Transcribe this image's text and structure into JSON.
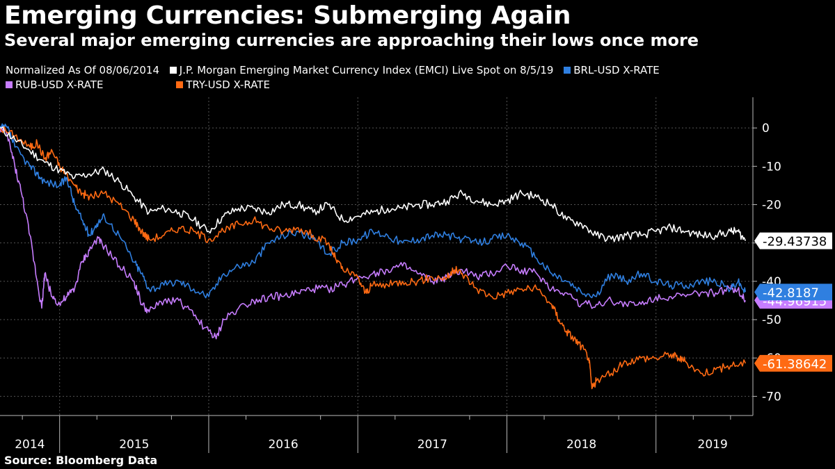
{
  "title": "Emerging Currencies: Submerging Again",
  "subtitle": "Several major emerging currencies are approaching their lows once more",
  "source": "Source: Bloomberg Data",
  "legend": {
    "normalized_note": "Normalized As Of 08/06/2014",
    "items": [
      {
        "label": "J.P. Morgan Emerging Market Currency Index (EMCI) Live Spot  on 8/5/19",
        "color": "#ffffff"
      },
      {
        "label": "BRL-USD X-RATE",
        "color": "#2f7fe0"
      },
      {
        "label": "RUB-USD X-RATE",
        "color": "#c77dff"
      },
      {
        "label": "TRY-USD X-RATE",
        "color": "#ff6a13"
      }
    ]
  },
  "chart_data": {
    "type": "line",
    "title": "Emerging Currencies: Submerging Again",
    "xlabel": "",
    "ylabel": "",
    "xlim": [
      2014.6,
      2019.65
    ],
    "ylim": [
      -75,
      8
    ],
    "yticks": [
      0,
      -10,
      -20,
      -30,
      -40,
      -50,
      -60,
      -70
    ],
    "year_labels": [
      {
        "label": "2014",
        "x": 2014.8
      },
      {
        "label": "2015",
        "x": 2015.5
      },
      {
        "label": "2016",
        "x": 2016.5
      },
      {
        "label": "2017",
        "x": 2017.5
      },
      {
        "label": "2018",
        "x": 2018.5
      },
      {
        "label": "2019",
        "x": 2019.38
      }
    ],
    "year_boundaries": [
      2015.0,
      2016.0,
      2017.0,
      2018.0,
      2019.0
    ],
    "minor_boundaries": [
      2014.75,
      2015.25,
      2015.75,
      2016.25,
      2016.75,
      2017.25,
      2017.75,
      2018.25,
      2018.75,
      2019.25,
      2019.5
    ],
    "series": [
      {
        "name": "J.P. Morgan Emerging Market Currency Index (EMCI) Live Spot  on 8/5/19",
        "color": "#ffffff",
        "end_label": "-29.43738",
        "points": [
          [
            2014.6,
            0
          ],
          [
            2014.7,
            -3
          ],
          [
            2014.8,
            -6
          ],
          [
            2014.9,
            -9
          ],
          [
            2015.0,
            -11
          ],
          [
            2015.1,
            -13
          ],
          [
            2015.2,
            -12
          ],
          [
            2015.3,
            -11
          ],
          [
            2015.4,
            -14
          ],
          [
            2015.5,
            -18
          ],
          [
            2015.6,
            -22
          ],
          [
            2015.7,
            -21
          ],
          [
            2015.8,
            -22
          ],
          [
            2015.9,
            -24
          ],
          [
            2016.0,
            -27
          ],
          [
            2016.1,
            -23
          ],
          [
            2016.2,
            -21
          ],
          [
            2016.3,
            -21
          ],
          [
            2016.4,
            -22
          ],
          [
            2016.5,
            -20
          ],
          [
            2016.6,
            -20
          ],
          [
            2016.7,
            -22
          ],
          [
            2016.8,
            -20
          ],
          [
            2016.9,
            -24
          ],
          [
            2017.0,
            -23
          ],
          [
            2017.1,
            -22
          ],
          [
            2017.2,
            -21
          ],
          [
            2017.3,
            -21
          ],
          [
            2017.4,
            -20
          ],
          [
            2017.5,
            -20
          ],
          [
            2017.6,
            -19
          ],
          [
            2017.7,
            -17
          ],
          [
            2017.8,
            -19
          ],
          [
            2017.9,
            -20
          ],
          [
            2018.0,
            -19
          ],
          [
            2018.1,
            -17
          ],
          [
            2018.2,
            -18
          ],
          [
            2018.3,
            -20
          ],
          [
            2018.4,
            -24
          ],
          [
            2018.5,
            -25
          ],
          [
            2018.6,
            -28
          ],
          [
            2018.7,
            -29
          ],
          [
            2018.8,
            -28
          ],
          [
            2018.9,
            -28
          ],
          [
            2019.0,
            -27
          ],
          [
            2019.1,
            -26
          ],
          [
            2019.2,
            -27
          ],
          [
            2019.3,
            -28
          ],
          [
            2019.4,
            -28
          ],
          [
            2019.5,
            -27
          ],
          [
            2019.55,
            -27
          ],
          [
            2019.6,
            -29.43738
          ]
        ]
      },
      {
        "name": "BRL-USD X-RATE",
        "color": "#2f7fe0",
        "end_label": "-42.8187",
        "points": [
          [
            2014.6,
            0
          ],
          [
            2014.65,
            0
          ],
          [
            2014.7,
            -5
          ],
          [
            2014.8,
            -10
          ],
          [
            2014.85,
            -12
          ],
          [
            2014.9,
            -14
          ],
          [
            2015.0,
            -15
          ],
          [
            2015.05,
            -13
          ],
          [
            2015.1,
            -20
          ],
          [
            2015.15,
            -24
          ],
          [
            2015.2,
            -28
          ],
          [
            2015.25,
            -25
          ],
          [
            2015.3,
            -23
          ],
          [
            2015.4,
            -28
          ],
          [
            2015.5,
            -35
          ],
          [
            2015.55,
            -38
          ],
          [
            2015.6,
            -42
          ],
          [
            2015.7,
            -41
          ],
          [
            2015.8,
            -40
          ],
          [
            2015.9,
            -42
          ],
          [
            2016.0,
            -44
          ],
          [
            2016.1,
            -38
          ],
          [
            2016.2,
            -36
          ],
          [
            2016.3,
            -35
          ],
          [
            2016.4,
            -30
          ],
          [
            2016.5,
            -28
          ],
          [
            2016.6,
            -27
          ],
          [
            2016.7,
            -29
          ],
          [
            2016.8,
            -33
          ],
          [
            2016.9,
            -30
          ],
          [
            2017.0,
            -29
          ],
          [
            2017.1,
            -27
          ],
          [
            2017.2,
            -28
          ],
          [
            2017.3,
            -30
          ],
          [
            2017.4,
            -29
          ],
          [
            2017.5,
            -28
          ],
          [
            2017.6,
            -28
          ],
          [
            2017.7,
            -29
          ],
          [
            2017.8,
            -30
          ],
          [
            2017.9,
            -29
          ],
          [
            2018.0,
            -28
          ],
          [
            2018.1,
            -30
          ],
          [
            2018.2,
            -34
          ],
          [
            2018.3,
            -38
          ],
          [
            2018.4,
            -40
          ],
          [
            2018.5,
            -43
          ],
          [
            2018.6,
            -44
          ],
          [
            2018.7,
            -38
          ],
          [
            2018.8,
            -40
          ],
          [
            2018.9,
            -38
          ],
          [
            2019.0,
            -40
          ],
          [
            2019.1,
            -41
          ],
          [
            2019.2,
            -41
          ],
          [
            2019.3,
            -40
          ],
          [
            2019.4,
            -40
          ],
          [
            2019.5,
            -42
          ],
          [
            2019.55,
            -40
          ],
          [
            2019.6,
            -42.8187
          ]
        ]
      },
      {
        "name": "RUB-USD X-RATE",
        "color": "#c77dff",
        "end_label": "-44.96915",
        "points": [
          [
            2014.6,
            0
          ],
          [
            2014.65,
            -2
          ],
          [
            2014.7,
            -10
          ],
          [
            2014.75,
            -18
          ],
          [
            2014.8,
            -28
          ],
          [
            2014.85,
            -40
          ],
          [
            2014.88,
            -47
          ],
          [
            2014.9,
            -38
          ],
          [
            2014.95,
            -44
          ],
          [
            2015.0,
            -46
          ],
          [
            2015.05,
            -44
          ],
          [
            2015.1,
            -42
          ],
          [
            2015.15,
            -35
          ],
          [
            2015.2,
            -32
          ],
          [
            2015.25,
            -29
          ],
          [
            2015.3,
            -31
          ],
          [
            2015.4,
            -36
          ],
          [
            2015.5,
            -40
          ],
          [
            2015.55,
            -46
          ],
          [
            2015.6,
            -48
          ],
          [
            2015.7,
            -45
          ],
          [
            2015.8,
            -45
          ],
          [
            2015.9,
            -49
          ],
          [
            2016.0,
            -53
          ],
          [
            2016.05,
            -55
          ],
          [
            2016.1,
            -50
          ],
          [
            2016.2,
            -47
          ],
          [
            2016.3,
            -45
          ],
          [
            2016.4,
            -44
          ],
          [
            2016.5,
            -44
          ],
          [
            2016.6,
            -43
          ],
          [
            2016.7,
            -42
          ],
          [
            2016.8,
            -42
          ],
          [
            2016.9,
            -41
          ],
          [
            2017.0,
            -39
          ],
          [
            2017.1,
            -38
          ],
          [
            2017.2,
            -37
          ],
          [
            2017.3,
            -36
          ],
          [
            2017.4,
            -38
          ],
          [
            2017.5,
            -40
          ],
          [
            2017.6,
            -39
          ],
          [
            2017.7,
            -37
          ],
          [
            2017.8,
            -39
          ],
          [
            2017.9,
            -38
          ],
          [
            2018.0,
            -36
          ],
          [
            2018.1,
            -37
          ],
          [
            2018.2,
            -38
          ],
          [
            2018.3,
            -42
          ],
          [
            2018.4,
            -43
          ],
          [
            2018.5,
            -46
          ],
          [
            2018.6,
            -46
          ],
          [
            2018.7,
            -45
          ],
          [
            2018.8,
            -46
          ],
          [
            2018.9,
            -46
          ],
          [
            2019.0,
            -44
          ],
          [
            2019.1,
            -44
          ],
          [
            2019.2,
            -44
          ],
          [
            2019.3,
            -43
          ],
          [
            2019.4,
            -43
          ],
          [
            2019.5,
            -42
          ],
          [
            2019.55,
            -42
          ],
          [
            2019.6,
            -44.96915
          ]
        ]
      },
      {
        "name": "TRY-USD X-RATE",
        "color": "#ff6a13",
        "end_label": "-61.38642",
        "points": [
          [
            2014.6,
            0
          ],
          [
            2014.7,
            -2
          ],
          [
            2014.8,
            -5
          ],
          [
            2014.85,
            -4
          ],
          [
            2014.9,
            -8
          ],
          [
            2014.95,
            -6
          ],
          [
            2015.0,
            -10
          ],
          [
            2015.1,
            -15
          ],
          [
            2015.15,
            -17
          ],
          [
            2015.2,
            -18
          ],
          [
            2015.3,
            -17
          ],
          [
            2015.4,
            -20
          ],
          [
            2015.5,
            -24
          ],
          [
            2015.55,
            -27
          ],
          [
            2015.6,
            -29
          ],
          [
            2015.7,
            -28
          ],
          [
            2015.8,
            -26
          ],
          [
            2015.9,
            -27
          ],
          [
            2016.0,
            -29
          ],
          [
            2016.1,
            -27
          ],
          [
            2016.2,
            -25
          ],
          [
            2016.3,
            -24
          ],
          [
            2016.4,
            -26
          ],
          [
            2016.5,
            -27
          ],
          [
            2016.6,
            -26
          ],
          [
            2016.7,
            -28
          ],
          [
            2016.8,
            -30
          ],
          [
            2016.85,
            -34
          ],
          [
            2016.9,
            -37
          ],
          [
            2017.0,
            -39
          ],
          [
            2017.05,
            -43
          ],
          [
            2017.1,
            -41
          ],
          [
            2017.2,
            -41
          ],
          [
            2017.3,
            -40
          ],
          [
            2017.4,
            -40
          ],
          [
            2017.5,
            -39
          ],
          [
            2017.6,
            -39
          ],
          [
            2017.65,
            -37
          ],
          [
            2017.7,
            -38
          ],
          [
            2017.8,
            -42
          ],
          [
            2017.9,
            -44
          ],
          [
            2018.0,
            -43
          ],
          [
            2018.1,
            -42
          ],
          [
            2018.2,
            -42
          ],
          [
            2018.3,
            -46
          ],
          [
            2018.35,
            -50
          ],
          [
            2018.4,
            -53
          ],
          [
            2018.45,
            -55
          ],
          [
            2018.5,
            -57
          ],
          [
            2018.55,
            -60
          ],
          [
            2018.57,
            -68
          ],
          [
            2018.6,
            -66
          ],
          [
            2018.7,
            -64
          ],
          [
            2018.8,
            -61
          ],
          [
            2018.9,
            -60
          ],
          [
            2019.0,
            -60
          ],
          [
            2019.1,
            -59
          ],
          [
            2019.15,
            -60
          ],
          [
            2019.2,
            -61
          ],
          [
            2019.3,
            -64
          ],
          [
            2019.4,
            -63
          ],
          [
            2019.5,
            -62
          ],
          [
            2019.6,
            -61.38642
          ]
        ]
      }
    ]
  }
}
